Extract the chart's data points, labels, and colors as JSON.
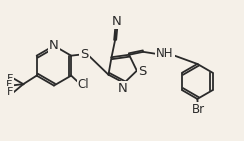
{
  "bg_color": "#f5f0e8",
  "line_color": "#2a2a2a",
  "font_size": 8.5,
  "line_width": 1.3,
  "xlim": [
    0,
    10
  ],
  "ylim": [
    0,
    5.8
  ]
}
